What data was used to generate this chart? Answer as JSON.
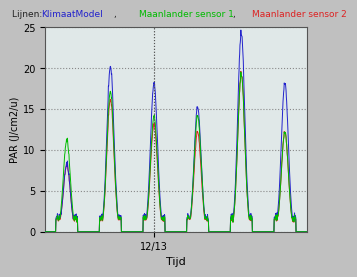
{
  "title": "Lijnen:  KlimaatModel,  Maanlander sensor 1,  Maanlander sensor 2",
  "xlabel": "Tijd",
  "ylabel": "PAR (J/cm2/u)",
  "ylim": [
    0,
    25
  ],
  "yticks": [
    0,
    5,
    10,
    15,
    20,
    25
  ],
  "xtick_label": "12/13",
  "bg_color": "#c0c0c0",
  "plot_bg_color": "#e0e8e8",
  "grid_color": "#888888",
  "line_blue": "#2222cc",
  "line_green": "#00bb00",
  "line_red": "#dd2222",
  "title_parts": [
    {
      "text": "Lijnen:  ",
      "color": "#222222"
    },
    {
      "text": "KlimaatModel",
      "color": "#2222cc"
    },
    {
      "text": ",  ",
      "color": "#222222"
    },
    {
      "text": "Maanlander sensor 1",
      "color": "#00bb00"
    },
    {
      "text": ",  ",
      "color": "#222222"
    },
    {
      "text": "Maanlander sensor 2",
      "color": "#dd2222"
    }
  ],
  "x_positions": [
    0.02,
    0.115,
    0.355,
    0.435,
    0.745,
    0.808
  ]
}
